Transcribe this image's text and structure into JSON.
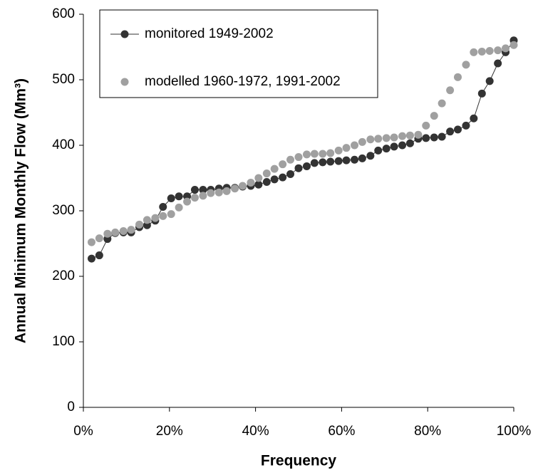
{
  "chart_data": {
    "type": "scatter",
    "xlabel": "Frequency",
    "ylabel": "Annual Minimum Monthly Flow (Mm³)",
    "xlim": [
      0,
      100
    ],
    "ylim": [
      0,
      600
    ],
    "xticks": [
      {
        "value": 0,
        "label": "0%"
      },
      {
        "value": 20,
        "label": "20%"
      },
      {
        "value": 40,
        "label": "40%"
      },
      {
        "value": 60,
        "label": "60%"
      },
      {
        "value": 80,
        "label": "80%"
      },
      {
        "value": 100,
        "label": "100%"
      }
    ],
    "yticks": [
      0,
      100,
      200,
      300,
      400,
      500,
      600
    ],
    "grid": false,
    "legend": "upper left",
    "x": [
      1.9,
      3.7,
      5.6,
      7.4,
      9.3,
      11.1,
      13.0,
      14.8,
      16.7,
      18.5,
      20.4,
      22.2,
      24.1,
      25.9,
      27.8,
      29.6,
      31.5,
      33.3,
      35.2,
      37.0,
      38.9,
      40.7,
      42.6,
      44.4,
      46.3,
      48.1,
      50.0,
      51.9,
      53.7,
      55.6,
      57.4,
      59.3,
      61.1,
      63.0,
      64.8,
      66.7,
      68.5,
      70.4,
      72.2,
      74.1,
      75.9,
      77.8,
      79.6,
      81.5,
      83.3,
      85.2,
      87.0,
      88.9,
      90.7,
      92.6,
      94.4,
      96.3,
      98.1,
      100
    ],
    "series": [
      {
        "name": "monitored 1949-2002",
        "color": "#333333",
        "line": true,
        "values": [
          227,
          232,
          257,
          266,
          267,
          267,
          275,
          278,
          285,
          306,
          319,
          322,
          322,
          332,
          332,
          332,
          334,
          335,
          335,
          337,
          338,
          340,
          344,
          348,
          351,
          356,
          365,
          368,
          373,
          374,
          375,
          376,
          377,
          378,
          380,
          384,
          392,
          395,
          398,
          400,
          403,
          410,
          411,
          412,
          413,
          421,
          424,
          430,
          441,
          479,
          498,
          525,
          542,
          560
        ]
      },
      {
        "name": "modelled 1960-1972, 1991-2002",
        "color": "#a0a0a0",
        "line": false,
        "values": [
          252,
          258,
          265,
          267,
          269,
          271,
          279,
          286,
          289,
          292,
          295,
          305,
          314,
          320,
          323,
          327,
          328,
          330,
          334,
          338,
          343,
          350,
          357,
          364,
          371,
          378,
          382,
          386,
          387,
          387,
          388,
          392,
          396,
          400,
          405,
          409,
          410,
          411,
          412,
          414,
          415,
          416,
          430,
          445,
          464,
          484,
          504,
          523,
          542,
          543,
          544,
          545,
          548,
          553
        ]
      }
    ]
  }
}
